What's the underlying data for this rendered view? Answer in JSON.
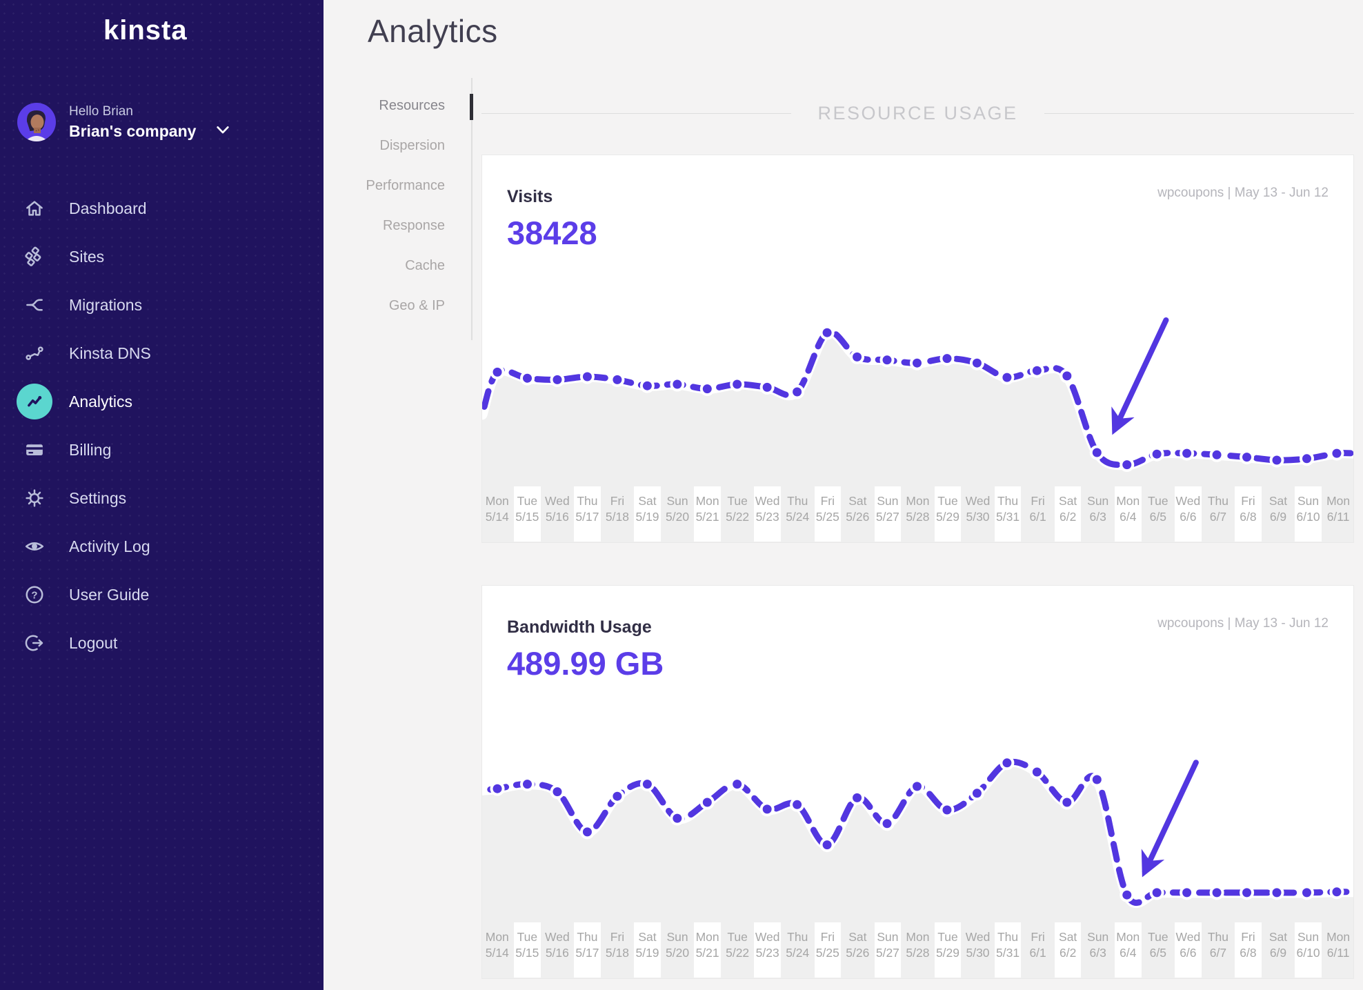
{
  "page": {
    "title": "Analytics"
  },
  "sidebar": {
    "logo": "kinsta",
    "user": {
      "greeting": "Hello Brian",
      "company": "Brian's company"
    },
    "items": [
      {
        "icon": "home-icon",
        "label": "Dashboard",
        "active": false
      },
      {
        "icon": "sites-icon",
        "label": "Sites",
        "active": false
      },
      {
        "icon": "migrations-icon",
        "label": "Migrations",
        "active": false
      },
      {
        "icon": "dns-icon",
        "label": "Kinsta DNS",
        "active": false
      },
      {
        "icon": "analytics-icon",
        "label": "Analytics",
        "active": true
      },
      {
        "icon": "billing-icon",
        "label": "Billing",
        "active": false
      },
      {
        "icon": "settings-icon",
        "label": "Settings",
        "active": false
      },
      {
        "icon": "activity-icon",
        "label": "Activity Log",
        "active": false
      },
      {
        "icon": "guide-icon",
        "label": "User Guide",
        "active": false
      },
      {
        "icon": "logout-icon",
        "label": "Logout",
        "active": false
      }
    ]
  },
  "subnav": {
    "items": [
      {
        "label": "Resources",
        "active": true
      },
      {
        "label": "Dispersion",
        "active": false
      },
      {
        "label": "Performance",
        "active": false
      },
      {
        "label": "Response",
        "active": false
      },
      {
        "label": "Cache",
        "active": false
      },
      {
        "label": "Geo & IP",
        "active": false
      }
    ]
  },
  "section": {
    "header": "RESOURCE USAGE"
  },
  "colors": {
    "accent_purple": "#5b3de8",
    "chart_line": "#5236e0",
    "teal_active_icon": "#5bd6cf",
    "sidebar_bg": "#20135e",
    "chart_fill": "#efefef",
    "page_bg": "#f4f3f3"
  },
  "chart_data": [
    {
      "type": "line",
      "title": "Visits",
      "total": "38428",
      "site_and_range": "wpcoupons | May 13 - Jun 12",
      "x": [
        "5/14",
        "5/15",
        "5/16",
        "5/17",
        "5/18",
        "5/19",
        "5/20",
        "5/21",
        "5/22",
        "5/23",
        "5/24",
        "5/25",
        "5/26",
        "5/27",
        "5/28",
        "5/29",
        "5/30",
        "5/31",
        "6/1",
        "6/2",
        "6/3",
        "6/4",
        "6/5",
        "6/6",
        "6/7",
        "6/8",
        "6/9",
        "6/10",
        "6/11"
      ],
      "day_labels": [
        "Mon",
        "Tue",
        "Wed",
        "Thu",
        "Fri",
        "Sat",
        "Sun",
        "Mon",
        "Tue",
        "Wed",
        "Thu",
        "Fri",
        "Sat",
        "Sun",
        "Mon",
        "Tue",
        "Wed",
        "Thu",
        "Fri",
        "Sat",
        "Sun",
        "Mon",
        "Tue",
        "Wed",
        "Thu",
        "Fri",
        "Sat",
        "Sun",
        "Mon"
      ],
      "values": [
        68,
        64,
        63,
        65,
        63,
        59,
        60,
        57,
        60,
        58,
        55,
        94,
        78,
        76,
        74,
        77,
        74,
        64.5,
        69,
        65.5,
        15,
        7,
        14,
        14.5,
        13.5,
        12,
        10,
        11,
        14.5
      ],
      "edge_start_value": 40,
      "ylim": [
        0,
        100
      ],
      "y_units": "relative scale (no y-axis shown in UI)",
      "grid": "alternating vertical label stripes only",
      "legend": "none",
      "annotation": {
        "type": "arrow",
        "target_x": "6/3",
        "meaning": "arrow pointing at sudden visits drop"
      }
    },
    {
      "type": "line",
      "title": "Bandwidth Usage",
      "total": "489.99 GB",
      "site_and_range": "wpcoupons | May 13 - Jun 12",
      "x": [
        "5/14",
        "5/15",
        "5/16",
        "5/17",
        "5/18",
        "5/19",
        "5/20",
        "5/21",
        "5/22",
        "5/23",
        "5/24",
        "5/25",
        "5/26",
        "5/27",
        "5/28",
        "5/29",
        "5/30",
        "5/31",
        "6/1",
        "6/2",
        "6/3",
        "6/4",
        "6/5",
        "6/6",
        "6/7",
        "6/8",
        "6/9",
        "6/10",
        "6/11"
      ],
      "day_labels": [
        "Mon",
        "Tue",
        "Wed",
        "Thu",
        "Fri",
        "Sat",
        "Sun",
        "Mon",
        "Tue",
        "Wed",
        "Thu",
        "Fri",
        "Sat",
        "Sun",
        "Mon",
        "Tue",
        "Wed",
        "Thu",
        "Fri",
        "Sat",
        "Sun",
        "Mon",
        "Tue",
        "Wed",
        "Thu",
        "Fri",
        "Sat",
        "Sun",
        "Mon"
      ],
      "values": [
        79,
        82,
        77,
        50.5,
        74,
        82,
        59.5,
        70,
        82,
        65.5,
        68.5,
        42,
        73,
        56,
        80.5,
        65,
        76,
        96,
        90,
        70,
        85,
        9,
        10.5,
        10.5,
        10.5,
        10.5,
        10.5,
        10.5,
        11
      ],
      "edge_start_value": 78,
      "ylim": [
        0,
        100
      ],
      "y_units": "relative scale (no y-axis shown in UI)",
      "grid": "alternating vertical label stripes only",
      "legend": "none",
      "annotation": {
        "type": "arrow",
        "target_x": "6/4",
        "meaning": "arrow pointing at sudden bandwidth drop"
      }
    }
  ]
}
